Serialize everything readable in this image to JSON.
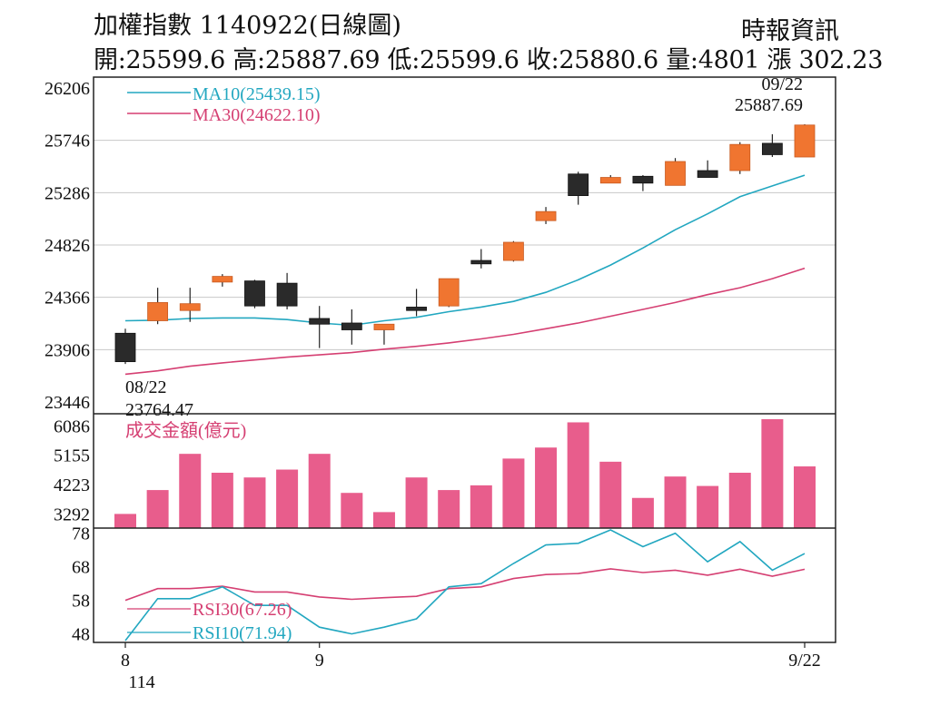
{
  "header": {
    "title": "加權指數 1140922(日線圖)",
    "source": "時報資訊",
    "quote": "開:25599.6 高:25887.69 低:25599.6 收:25880.6 量:4801 漲 302.23"
  },
  "colors": {
    "up": "#f07530",
    "down": "#2a2a2a",
    "ma10": "#22a7c0",
    "ma30": "#d53f72",
    "volume": "#e85d8c",
    "grid": "#c8c8c8",
    "frame": "#222222"
  },
  "chart_data": [
    {
      "type": "candlestick",
      "title": "加權指數 1140922(日線圖)",
      "ylim": [
        23446,
        26206
      ],
      "yticks": [
        "26206",
        "25746",
        "25286",
        "24826",
        "24366",
        "23906",
        "23446"
      ],
      "candles": [
        {
          "o": 24050,
          "h": 24090,
          "l": 23780,
          "c": 23800
        },
        {
          "o": 24160,
          "h": 24450,
          "l": 24130,
          "c": 24320
        },
        {
          "o": 24250,
          "h": 24450,
          "l": 24150,
          "c": 24310
        },
        {
          "o": 24500,
          "h": 24570,
          "l": 24460,
          "c": 24550
        },
        {
          "o": 24510,
          "h": 24520,
          "l": 24270,
          "c": 24290
        },
        {
          "o": 24490,
          "h": 24580,
          "l": 24260,
          "c": 24290
        },
        {
          "o": 24180,
          "h": 24290,
          "l": 23920,
          "c": 24130
        },
        {
          "o": 24140,
          "h": 24260,
          "l": 23950,
          "c": 24080
        },
        {
          "o": 24080,
          "h": 24120,
          "l": 23950,
          "c": 24130
        },
        {
          "o": 24280,
          "h": 24440,
          "l": 24200,
          "c": 24250
        },
        {
          "o": 24290,
          "h": 24530,
          "l": 24280,
          "c": 24530
        },
        {
          "o": 24690,
          "h": 24790,
          "l": 24620,
          "c": 24660
        },
        {
          "o": 24690,
          "h": 24860,
          "l": 24680,
          "c": 24850
        },
        {
          "o": 25040,
          "h": 25160,
          "l": 25010,
          "c": 25120
        },
        {
          "o": 25450,
          "h": 25470,
          "l": 25180,
          "c": 25260
        },
        {
          "o": 25370,
          "h": 25440,
          "l": 25370,
          "c": 25420
        },
        {
          "o": 25430,
          "h": 25440,
          "l": 25300,
          "c": 25370
        },
        {
          "o": 25350,
          "h": 25590,
          "l": 25350,
          "c": 25560
        },
        {
          "o": 25480,
          "h": 25570,
          "l": 25420,
          "c": 25420
        },
        {
          "o": 25480,
          "h": 25730,
          "l": 25450,
          "c": 25710
        },
        {
          "o": 25720,
          "h": 25800,
          "l": 25600,
          "c": 25620
        },
        {
          "o": 25599.6,
          "h": 25887.69,
          "l": 25599.6,
          "c": 25880.6
        }
      ],
      "ma10": {
        "name": "MA10(25439.15)",
        "values": [
          24160,
          24165,
          24180,
          24185,
          24185,
          24170,
          24140,
          24120,
          24160,
          24190,
          24240,
          24280,
          24330,
          24410,
          24520,
          24650,
          24800,
          24960,
          25100,
          25250,
          25345,
          25439.15
        ]
      },
      "ma30": {
        "name": "MA30(24622.10)",
        "values": [
          23690,
          23720,
          23760,
          23790,
          23815,
          23840,
          23860,
          23880,
          23910,
          23935,
          23965,
          24000,
          24040,
          24090,
          24140,
          24200,
          24260,
          24320,
          24390,
          24450,
          24530,
          24622.1
        ]
      },
      "annotations": [
        {
          "label": "08/22",
          "value": "23764.47"
        },
        {
          "label": "09/22",
          "value": "25887.69"
        }
      ]
    },
    {
      "type": "bar",
      "title": "成交金額(億元)",
      "ylim": [
        2900,
        6300
      ],
      "yticks": [
        "6086",
        "5155",
        "4223",
        "3292"
      ],
      "values": [
        3292,
        4050,
        5200,
        4600,
        4450,
        4700,
        5200,
        3960,
        3350,
        4450,
        4050,
        4200,
        5050,
        5400,
        6200,
        4950,
        3800,
        4480,
        4180,
        4600,
        6300,
        4801
      ]
    },
    {
      "type": "line",
      "yticks": [
        "78",
        "68",
        "58",
        "48"
      ],
      "ylim": [
        46,
        79
      ],
      "series": [
        {
          "name": "RSI30(67.26)",
          "values": [
            58,
            61.5,
            61.5,
            62.2,
            60.5,
            60.5,
            59,
            58.3,
            58.8,
            59.2,
            61.5,
            62,
            64.5,
            65.7,
            66,
            67.4,
            66.3,
            67,
            65.5,
            67.3,
            65.2,
            67.26
          ]
        },
        {
          "name": "RSI10(71.94)",
          "values": [
            46,
            58.5,
            58.5,
            62,
            56.5,
            56.5,
            50,
            48,
            50,
            52.5,
            62,
            63,
            69,
            74.5,
            75,
            79,
            74,
            78,
            69.5,
            75.5,
            67,
            71.94
          ]
        }
      ],
      "x_ticks": [
        "8",
        "9",
        "9/22"
      ],
      "x_sublabel": "114"
    }
  ]
}
